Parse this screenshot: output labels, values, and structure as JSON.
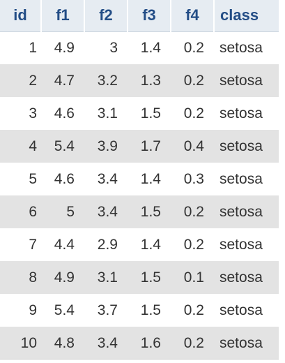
{
  "table": {
    "columns": [
      "id",
      "f1",
      "f2",
      "f3",
      "f4",
      "class"
    ],
    "rows": [
      [
        "1",
        "4.9",
        "3",
        "1.4",
        "0.2",
        "setosa"
      ],
      [
        "2",
        "4.7",
        "3.2",
        "1.3",
        "0.2",
        "setosa"
      ],
      [
        "3",
        "4.6",
        "3.1",
        "1.5",
        "0.2",
        "setosa"
      ],
      [
        "4",
        "5.4",
        "3.9",
        "1.7",
        "0.4",
        "setosa"
      ],
      [
        "5",
        "4.6",
        "3.4",
        "1.4",
        "0.3",
        "setosa"
      ],
      [
        "6",
        "5",
        "3.4",
        "1.5",
        "0.2",
        "setosa"
      ],
      [
        "7",
        "4.4",
        "2.9",
        "1.4",
        "0.2",
        "setosa"
      ],
      [
        "8",
        "4.9",
        "3.1",
        "1.5",
        "0.1",
        "setosa"
      ],
      [
        "9",
        "5.4",
        "3.7",
        "1.5",
        "0.2",
        "setosa"
      ],
      [
        "10",
        "4.8",
        "3.4",
        "1.6",
        "0.2",
        "setosa"
      ]
    ]
  },
  "colors": {
    "header_bg": "#e6ecf2",
    "header_text": "#234d86",
    "row_alt_bg": "#e3e3e3",
    "cell_text": "#333333"
  }
}
